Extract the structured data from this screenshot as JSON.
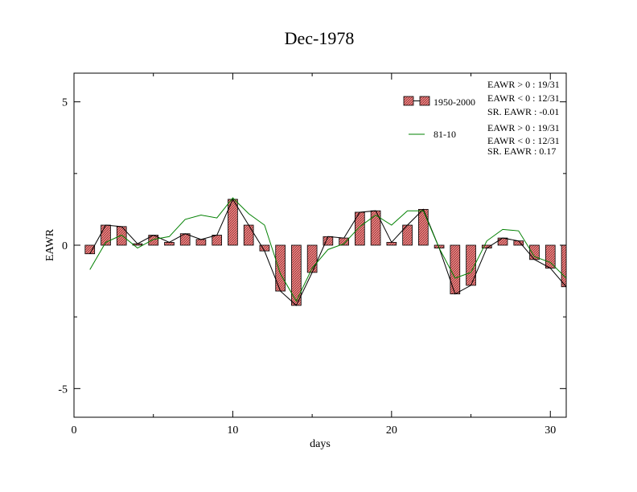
{
  "chart_data": {
    "type": "bar",
    "title": "Dec-1978",
    "xlabel": "days",
    "ylabel": "EAWR",
    "xlim": [
      0,
      31
    ],
    "ylim": [
      -6,
      6
    ],
    "x_ticks": [
      0,
      10,
      20,
      30
    ],
    "x_tick_labels": [
      "0",
      "10",
      "20",
      "30"
    ],
    "y_ticks": [
      5,
      0,
      -5
    ],
    "y_tick_labels": [
      "5",
      "0",
      "-5"
    ],
    "grid": false,
    "legend_position": "top-right",
    "x": [
      1,
      2,
      3,
      4,
      5,
      6,
      7,
      8,
      9,
      10,
      11,
      12,
      13,
      14,
      15,
      16,
      17,
      18,
      19,
      20,
      21,
      22,
      23,
      24,
      25,
      26,
      27,
      28,
      29,
      30,
      31
    ],
    "series": [
      {
        "name": "1950-2000",
        "kind": "bar",
        "fill": "#f08080",
        "line_color": "#000000",
        "values": [
          -0.3,
          0.7,
          0.65,
          0.05,
          0.35,
          0.1,
          0.4,
          0.2,
          0.35,
          1.6,
          0.7,
          -0.2,
          -1.6,
          -2.1,
          -0.95,
          0.3,
          0.25,
          1.15,
          1.2,
          0.1,
          0.7,
          1.25,
          -0.1,
          -1.7,
          -1.4,
          -0.1,
          0.25,
          0.15,
          -0.5,
          -0.8,
          -1.45
        ]
      },
      {
        "name": "81-10",
        "kind": "line",
        "color": "#008000",
        "values": [
          -0.85,
          0.1,
          0.35,
          -0.1,
          0.2,
          0.3,
          0.9,
          1.05,
          0.95,
          1.65,
          1.1,
          0.7,
          -1.0,
          -1.95,
          -0.8,
          -0.15,
          0.05,
          0.65,
          1.05,
          0.7,
          1.2,
          1.2,
          -0.1,
          -1.15,
          -0.95,
          0.15,
          0.55,
          0.5,
          -0.4,
          -0.6,
          -1.15
        ]
      }
    ],
    "annotations": [
      {
        "lines": [
          "EAWR > 0 : 19/31",
          "EAWR < 0 : 12/31",
          "SR. EAWR : -0.01"
        ]
      },
      {
        "lines": [
          "EAWR > 0 : 19/31",
          "EAWR < 0 : 12/31",
          "SR. EAWR :  0.17"
        ]
      }
    ]
  }
}
